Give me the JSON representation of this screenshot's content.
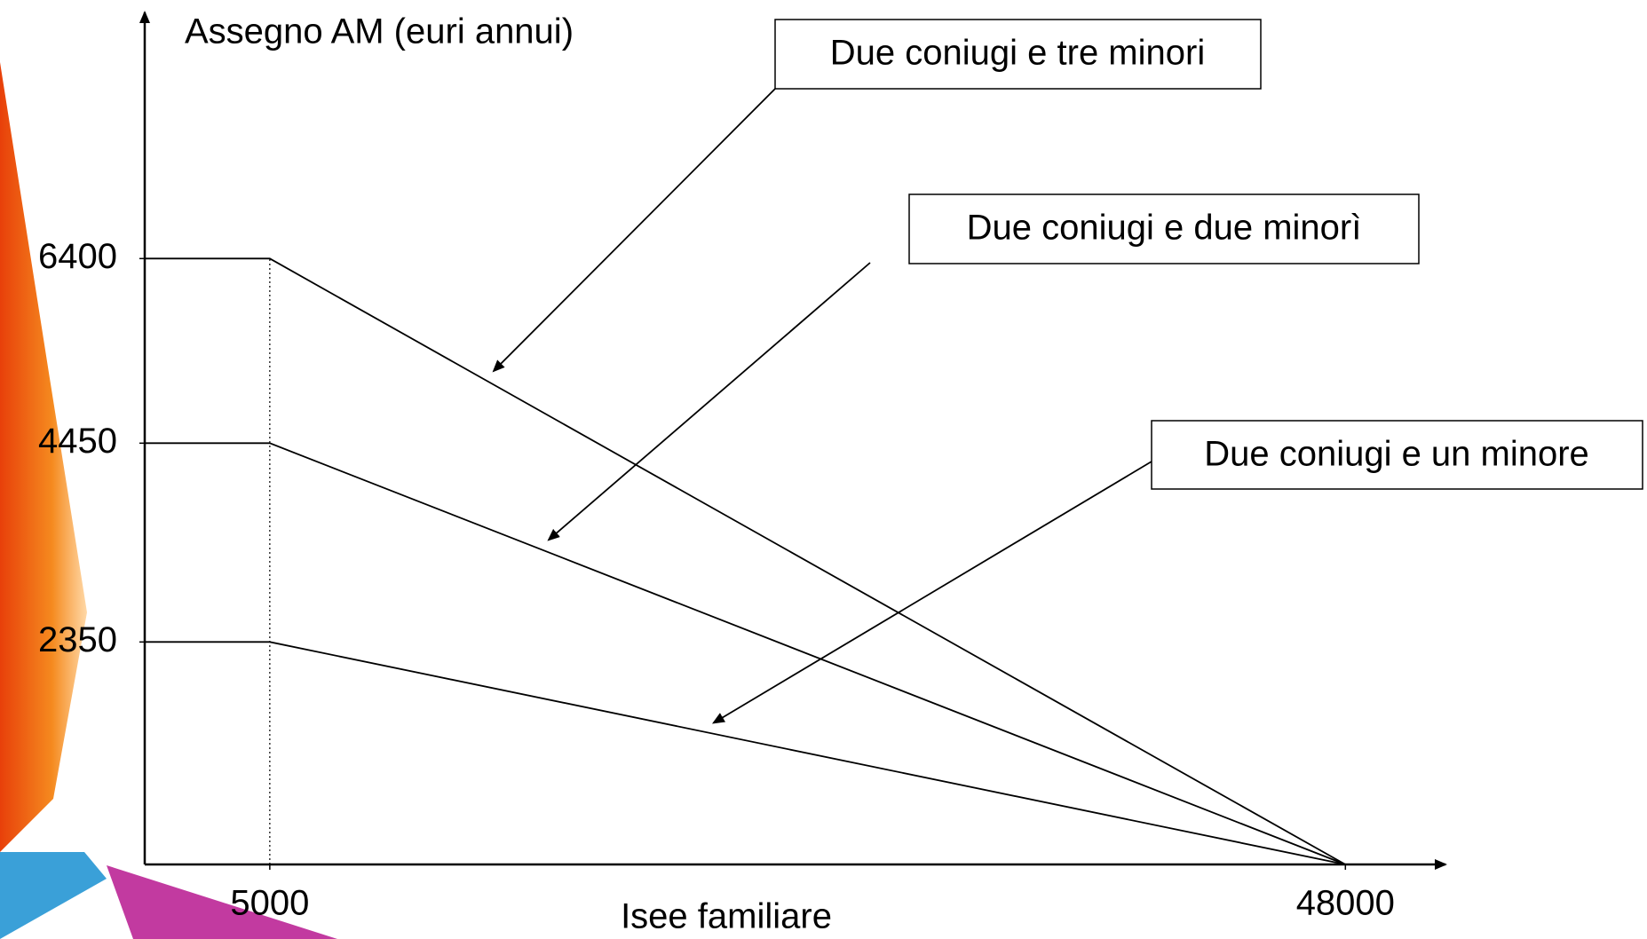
{
  "chart_data": {
    "type": "line",
    "ylabel": "Assegno AM (euri annui)",
    "xlabel": "Isee familiare",
    "x": [
      0,
      5000,
      48000
    ],
    "series": [
      {
        "name": "Due coniugi e tre minori",
        "color": "#000000",
        "values": [
          6400,
          6400,
          0
        ]
      },
      {
        "name": "Due coniugi e due minorì",
        "color": "#000000",
        "values": [
          4450,
          4450,
          0
        ]
      },
      {
        "name": "Due coniugi e un minore",
        "color": "#000000",
        "values": [
          2350,
          2350,
          0
        ]
      }
    ],
    "xlim": [
      0,
      52000
    ],
    "ylim": [
      0,
      9000
    ],
    "xticks": [
      5000,
      48000
    ],
    "yticks": [
      2350,
      4450,
      6400
    ],
    "grid": false
  }
}
